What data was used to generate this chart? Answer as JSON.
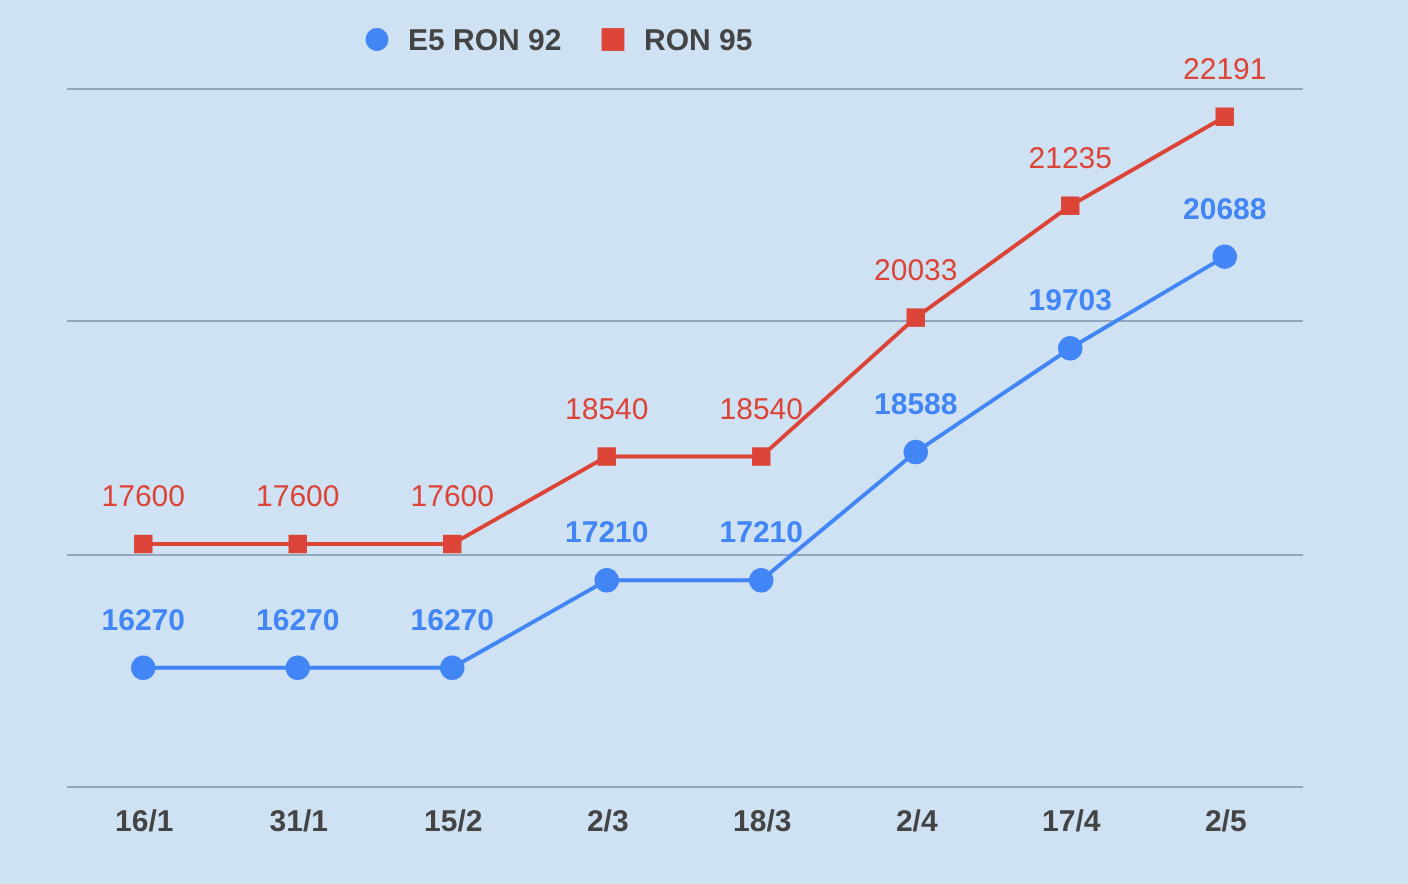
{
  "chart_data": {
    "type": "line",
    "categories": [
      "16/1",
      "31/1",
      "15/2",
      "2/3",
      "18/3",
      "2/4",
      "17/4",
      "2/5"
    ],
    "series": [
      {
        "name": "E5 RON 92",
        "color": "#4285f4",
        "marker": "circle",
        "values": [
          16270,
          16270,
          16270,
          17210,
          17210,
          18588,
          19703,
          20688
        ]
      },
      {
        "name": "RON 95",
        "color": "#db4437",
        "marker": "square",
        "values": [
          17600,
          17600,
          17600,
          18540,
          18540,
          20033,
          21235,
          22191
        ]
      }
    ],
    "ylim": [
      15000,
      22500
    ],
    "yticks": [
      {
        "value": 15000,
        "label": null
      },
      {
        "value": 17500,
        "label": null
      },
      {
        "value": 20000,
        "label": null
      },
      {
        "value": 22500,
        "label": null
      }
    ],
    "tick_labels": "x",
    "grid": "y",
    "legend": "top",
    "data_labels": true
  }
}
